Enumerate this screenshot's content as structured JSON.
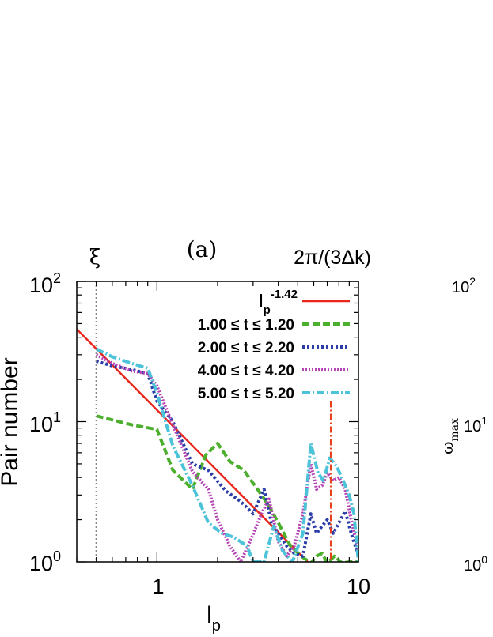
{
  "chart_data": [
    {
      "type": "line",
      "panel_label": "(a)",
      "title": "",
      "xlabel": "l",
      "xlabel_sub": "p",
      "ylabel": "Pair number",
      "xscale": "log",
      "yscale": "log",
      "xlim": [
        0.4,
        10
      ],
      "ylim": [
        1,
        100
      ],
      "x_ticks": [
        {
          "value": 1,
          "label": "1"
        },
        {
          "value": 10,
          "label": "10"
        }
      ],
      "y_ticks": [
        {
          "value": 1,
          "base": "10",
          "exp": "0"
        },
        {
          "value": 10,
          "base": "10",
          "exp": "1"
        },
        {
          "value": 100,
          "base": "10",
          "exp": "2"
        }
      ],
      "annotations": [
        {
          "id": "xi",
          "text": "ξ",
          "x": 0.5,
          "style": "dotted",
          "color": "#888888"
        },
        {
          "id": "kcut",
          "text": "2π/(3Δk)",
          "x": 7.3,
          "style": "dashdot",
          "color": "#e8401c"
        }
      ],
      "legend_position": "top-right",
      "series": [
        {
          "name": "fit",
          "label_base": "l",
          "label_sub": "p",
          "label_sup": "-1.42",
          "color": "#e8261c",
          "dash": "",
          "points": [
            [
              0.4,
              45.6
            ],
            [
              5.6,
              1.0
            ]
          ]
        },
        {
          "name": "1.00 ≤ t ≤ 1.20",
          "color": "#4caf2e",
          "dash": "9,4",
          "points": [
            [
              0.5,
              11
            ],
            [
              0.75,
              9.5
            ],
            [
              1.0,
              8.8
            ],
            [
              1.2,
              4.5
            ],
            [
              1.5,
              3.3
            ],
            [
              1.75,
              5.8
            ],
            [
              2.0,
              7.0
            ],
            [
              2.3,
              5.2
            ],
            [
              2.7,
              4.5
            ],
            [
              3.2,
              3.2
            ],
            [
              3.6,
              2.5
            ],
            [
              4.0,
              1.9
            ],
            [
              4.6,
              1.3
            ],
            [
              5.2,
              1.1
            ],
            [
              5.8,
              0.98
            ],
            [
              6.2,
              1.1
            ],
            [
              6.6,
              1.15
            ],
            [
              7.0,
              0.98
            ],
            [
              7.6,
              1.1
            ],
            [
              8.3,
              0.98
            ],
            [
              9.0,
              1.0
            ],
            [
              10.0,
              1.0
            ]
          ]
        },
        {
          "name": "2.00 ≤ t ≤ 2.20",
          "color": "#2b3ea8",
          "dash": "3,3",
          "points": [
            [
              0.5,
              27
            ],
            [
              0.6,
              25
            ],
            [
              0.75,
              23.5
            ],
            [
              0.9,
              22
            ],
            [
              1.0,
              14
            ],
            [
              1.2,
              10
            ],
            [
              1.5,
              5.0
            ],
            [
              1.8,
              4.5
            ],
            [
              2.2,
              3.2
            ],
            [
              2.6,
              2.7
            ],
            [
              3.0,
              2.2
            ],
            [
              3.4,
              3.3
            ],
            [
              3.7,
              1.9
            ],
            [
              4.0,
              1.6
            ],
            [
              4.4,
              1.3
            ],
            [
              4.8,
              1.15
            ],
            [
              5.3,
              1.1
            ],
            [
              5.8,
              2.2
            ],
            [
              6.2,
              1.6
            ],
            [
              6.6,
              1.8
            ],
            [
              7.0,
              2.0
            ],
            [
              7.5,
              1.6
            ],
            [
              8.0,
              1.9
            ],
            [
              8.6,
              2.3
            ],
            [
              9.2,
              1.6
            ],
            [
              10.0,
              1.1
            ]
          ]
        },
        {
          "name": "4.00 ≤ t ≤ 4.20",
          "color": "#b544b5",
          "dash": "2,2",
          "points": [
            [
              0.5,
              30
            ],
            [
              0.6,
              26
            ],
            [
              0.75,
              23
            ],
            [
              0.9,
              22
            ],
            [
              1.0,
              18
            ],
            [
              1.2,
              9.5
            ],
            [
              1.5,
              4.4
            ],
            [
              1.8,
              3.3
            ],
            [
              2.0,
              2.0
            ],
            [
              2.3,
              1.3
            ],
            [
              2.6,
              1.0
            ],
            [
              2.9,
              1.4
            ],
            [
              3.3,
              2.2
            ],
            [
              3.6,
              2.8
            ],
            [
              4.0,
              1.4
            ],
            [
              4.4,
              1.1
            ],
            [
              4.8,
              1.3
            ],
            [
              5.3,
              2.2
            ],
            [
              5.8,
              5.0
            ],
            [
              6.2,
              3.3
            ],
            [
              6.6,
              3.5
            ],
            [
              7.0,
              4.3
            ],
            [
              7.5,
              3.8
            ],
            [
              8.0,
              4.0
            ],
            [
              8.6,
              3.3
            ],
            [
              9.2,
              2.0
            ],
            [
              10.0,
              1.2
            ]
          ]
        },
        {
          "name": "5.00 ≤ t ≤ 5.20",
          "color": "#4cc3d8",
          "dash": "10,3,2,3",
          "points": [
            [
              0.5,
              33
            ],
            [
              0.6,
              29
            ],
            [
              0.75,
              26
            ],
            [
              0.9,
              24
            ],
            [
              1.0,
              16
            ],
            [
              1.2,
              6.7
            ],
            [
              1.5,
              3.5
            ],
            [
              1.8,
              1.9
            ],
            [
              2.1,
              1.6
            ],
            [
              2.4,
              1.5
            ],
            [
              2.8,
              1.3
            ],
            [
              3.0,
              1.0
            ],
            [
              3.4,
              1.0
            ],
            [
              3.8,
              1.8
            ],
            [
              4.2,
              1.2
            ],
            [
              4.7,
              1.0
            ],
            [
              5.3,
              1.6
            ],
            [
              5.8,
              7.0
            ],
            [
              6.3,
              4.3
            ],
            [
              6.7,
              3.8
            ],
            [
              7.2,
              5.5
            ],
            [
              7.8,
              4.8
            ],
            [
              8.4,
              3.8
            ],
            [
              9.0,
              3.0
            ],
            [
              9.5,
              2.2
            ],
            [
              10.0,
              1.0
            ]
          ]
        }
      ]
    },
    {
      "type": "line",
      "partial": true,
      "ylabel": "ω",
      "ylabel_sub": "max",
      "yscale": "log",
      "y_ticks": [
        {
          "value": 1,
          "base": "10",
          "exp": "0"
        },
        {
          "value": 10,
          "base": "10",
          "exp": "1"
        },
        {
          "value": 100,
          "base": "10",
          "exp": "2"
        }
      ]
    }
  ]
}
